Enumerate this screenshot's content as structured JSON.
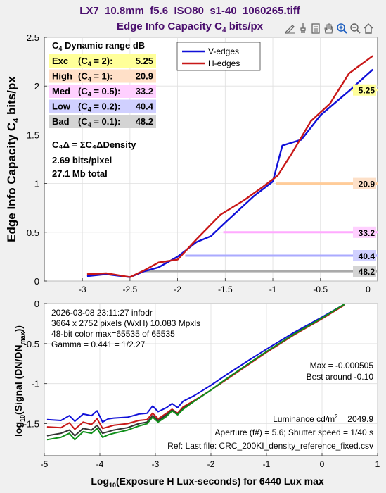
{
  "figure": {
    "title_line1": "LX7_10.8mm_f5.6_ISO80_s1-40_1060265.tiff",
    "title_line2_a": "Edge Info Capacity C",
    "title_line2_sub": "4",
    "title_line2_b": " bits/px",
    "title_color": "#4b0f6e"
  },
  "toolbar": {
    "icons": [
      "edit-icon",
      "brush-icon",
      "clipboard-icon",
      "hand-icon",
      "zoom-in-icon",
      "zoom-out-icon",
      "home-icon"
    ]
  },
  "chart_data": [
    {
      "type": "line",
      "ylabel_a": "Edge Info Capacity C",
      "ylabel_sub": "4",
      "ylabel_b": " bits/px",
      "xlim": [
        -3.4,
        0.1
      ],
      "ylim": [
        0,
        2.5
      ],
      "xticks": [
        -3,
        -2.5,
        -2,
        -1.5,
        -1,
        -0.5,
        0
      ],
      "xtick_labels": [
        "-3",
        "-2.5",
        "-2",
        "-1.5",
        "-1",
        "-0.5",
        "0"
      ],
      "yticks": [
        0,
        0.5,
        1,
        1.5,
        2,
        2.5
      ],
      "ytick_labels": [
        "0",
        "0.5",
        "1",
        "1.5",
        "2",
        "2.5"
      ],
      "legend": {
        "placement": "top-center",
        "entries": [
          {
            "name": "V-edges",
            "color": "#1010d8"
          },
          {
            "name": "H-edges",
            "color": "#c81818"
          }
        ]
      },
      "series": [
        {
          "name": "V-edges",
          "color": "#1010d8",
          "x": [
            -2.95,
            -2.75,
            -2.5,
            -2.35,
            -2.2,
            -2.0,
            -1.8,
            -1.65,
            -1.5,
            -1.2,
            -1.0,
            -0.9,
            -0.7,
            -0.5,
            -0.2,
            0.05
          ],
          "y": [
            0.05,
            0.07,
            0.04,
            0.1,
            0.14,
            0.25,
            0.4,
            0.46,
            0.6,
            0.87,
            1.02,
            1.39,
            1.45,
            1.7,
            1.95,
            2.17
          ]
        },
        {
          "name": "H-edges",
          "color": "#c81818",
          "x": [
            -2.95,
            -2.75,
            -2.5,
            -2.35,
            -2.2,
            -2.0,
            -1.8,
            -1.55,
            -1.3,
            -1.1,
            -0.95,
            -0.8,
            -0.6,
            -0.4,
            -0.2,
            0.05
          ],
          "y": [
            0.07,
            0.08,
            0.04,
            0.11,
            0.19,
            0.22,
            0.43,
            0.68,
            0.83,
            0.97,
            1.08,
            1.31,
            1.64,
            1.82,
            2.13,
            2.31
          ]
        }
      ],
      "threshold_lines": [
        {
          "label": "5.25",
          "y": 1.96,
          "x_start": -0.19,
          "color": "#ffff99",
          "box": "#ffff99"
        },
        {
          "label": "20.9",
          "y": 1.0,
          "x_start": -0.97,
          "color": "#ffcc99",
          "box": "#fde0c8"
        },
        {
          "label": "33.2",
          "y": 0.5,
          "x_start": -1.52,
          "color": "#ffaaff",
          "box": "#ffd0ff"
        },
        {
          "label": "40.4",
          "y": 0.26,
          "x_start": -1.92,
          "color": "#aaaaff",
          "box": "#d0d0ff"
        },
        {
          "label": "48.2",
          "y": 0.1,
          "x_start": -2.37,
          "color": "#aaaaaa",
          "box": "#d4d4d4"
        }
      ],
      "info": {
        "heading_a": "C",
        "heading_sub": "4",
        "heading_b": " Dynamic range dB",
        "rows": [
          {
            "name": "Exc",
            "c4": "2",
            "value": "5.25",
            "bg": "#ffff99"
          },
          {
            "name": "High",
            "c4": "1",
            "value": "20.9",
            "bg": "#ffe0c8"
          },
          {
            "name": "Med",
            "c4": "0.5",
            "value": "33.2",
            "bg": "#ffd0ff"
          },
          {
            "name": "Low",
            "c4": "0.2",
            "value": "40.4",
            "bg": "#d0d0ff"
          },
          {
            "name": "Bad",
            "c4": "0.1",
            "value": "48.2",
            "bg": "#d4d4d4"
          }
        ],
        "formula": "C₄Δ = ΣC₄ΔDensity",
        "bits_pixel": "2.69 bits/pixel",
        "total": "27.1 Mb total"
      }
    },
    {
      "type": "line",
      "xlabel_a": "Log",
      "xlabel_sub": "10",
      "xlabel_b": "(Exposure H Lux-seconds)  for 6440 Lux max",
      "ylabel": "log₁₀(Signal (DN/DNmax))",
      "xlim": [
        -5,
        1
      ],
      "ylim": [
        -1.9,
        0
      ],
      "xticks": [
        -5,
        -4,
        -3,
        -2,
        -1,
        0,
        1
      ],
      "xtick_labels": [
        "-5",
        "-4",
        "-3",
        "-2",
        "-1",
        "0",
        "1"
      ],
      "yticks": [
        -1.5,
        -1,
        -0.5,
        0
      ],
      "ytick_labels": [
        "-1.5",
        "-1",
        "-0.5",
        "0"
      ],
      "series": [
        {
          "name": "Blue channel",
          "color": "#1010d8",
          "x": [
            -4.95,
            -4.7,
            -4.55,
            -4.45,
            -4.3,
            -4.15,
            -4.05,
            -3.95,
            -3.85,
            -3.75,
            -3.5,
            -3.3,
            -3.15,
            -3.05,
            -2.95,
            -2.8,
            -2.7,
            -2.6,
            -2.5,
            -2.3,
            -2.0,
            -1.7,
            -1.3,
            -1.0,
            -0.5,
            0.0,
            0.4
          ],
          "y": [
            -1.45,
            -1.46,
            -1.4,
            -1.47,
            -1.38,
            -1.4,
            -1.34,
            -1.48,
            -1.44,
            -1.43,
            -1.42,
            -1.38,
            -1.37,
            -1.28,
            -1.35,
            -1.3,
            -1.25,
            -1.3,
            -1.22,
            -1.15,
            -1.02,
            -0.88,
            -0.7,
            -0.57,
            -0.36,
            -0.17,
            -0.01
          ]
        },
        {
          "name": "Red channel",
          "color": "#c81818",
          "x": [
            -4.95,
            -4.7,
            -4.55,
            -4.45,
            -4.3,
            -4.15,
            -4.05,
            -3.95,
            -3.85,
            -3.75,
            -3.5,
            -3.3,
            -3.15,
            -3.05,
            -2.95,
            -2.8,
            -2.7,
            -2.6,
            -2.5,
            -2.3,
            -2.0,
            -1.7,
            -1.3,
            -1.0,
            -0.5,
            0.0,
            0.4
          ],
          "y": [
            -1.54,
            -1.55,
            -1.49,
            -1.57,
            -1.48,
            -1.51,
            -1.44,
            -1.56,
            -1.54,
            -1.52,
            -1.5,
            -1.46,
            -1.45,
            -1.37,
            -1.44,
            -1.37,
            -1.32,
            -1.37,
            -1.29,
            -1.21,
            -1.08,
            -0.94,
            -0.75,
            -0.61,
            -0.39,
            -0.19,
            -0.02
          ]
        },
        {
          "name": "Luminance",
          "color": "#333333",
          "x": [
            -4.95,
            -4.7,
            -4.55,
            -4.45,
            -4.3,
            -4.15,
            -4.05,
            -3.95,
            -3.85,
            -3.75,
            -3.5,
            -3.3,
            -3.15,
            -3.05,
            -2.95,
            -2.8,
            -2.7,
            -2.6,
            -2.5,
            -2.3,
            -2.0,
            -1.7,
            -1.3,
            -1.0,
            -0.5,
            0.0,
            0.4
          ],
          "y": [
            -1.65,
            -1.62,
            -1.58,
            -1.65,
            -1.56,
            -1.58,
            -1.52,
            -1.62,
            -1.6,
            -1.58,
            -1.55,
            -1.5,
            -1.48,
            -1.4,
            -1.46,
            -1.39,
            -1.33,
            -1.38,
            -1.31,
            -1.22,
            -1.08,
            -0.93,
            -0.74,
            -0.6,
            -0.38,
            -0.18,
            -0.01
          ]
        },
        {
          "name": "Green channel",
          "color": "#10901a",
          "x": [
            -4.95,
            -4.7,
            -4.55,
            -4.45,
            -4.3,
            -4.15,
            -4.05,
            -3.95,
            -3.85,
            -3.75,
            -3.5,
            -3.3,
            -3.15,
            -3.05,
            -2.95,
            -2.8,
            -2.7,
            -2.6,
            -2.5,
            -2.3,
            -2.0,
            -1.7,
            -1.3,
            -1.0,
            -0.5,
            0.0,
            0.4
          ],
          "y": [
            -1.7,
            -1.67,
            -1.62,
            -1.7,
            -1.6,
            -1.62,
            -1.56,
            -1.67,
            -1.64,
            -1.62,
            -1.58,
            -1.53,
            -1.5,
            -1.42,
            -1.48,
            -1.41,
            -1.34,
            -1.39,
            -1.32,
            -1.22,
            -1.08,
            -0.93,
            -0.74,
            -0.6,
            -0.38,
            -0.18,
            -0.01
          ]
        }
      ],
      "info_top": [
        "2026-03-08 23:11:27   infodr",
        "3664 x 2752 pixels (WxH)   10.083 Mpxls",
        "48-bit color  max=65535 of 65535",
        "Gamma = 0.441 = 1/2.27"
      ],
      "max_text": "Max = -0.000505",
      "best_text": "Best around -0.10",
      "lum_a": "Luminance cd/m",
      "lum_sup": "2",
      "lum_b": " = 2049.9",
      "aperture_text": "Aperture (f#) = 5.6;  Shutter speed = 1/40 s",
      "ref_text": "Ref: Last file: CRC_200KI_density_reference_fixed.csv"
    }
  ]
}
